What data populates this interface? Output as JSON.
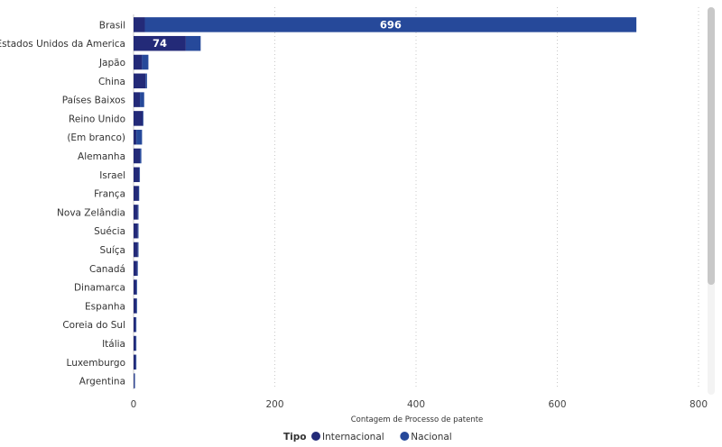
{
  "chart_data": {
    "type": "bar",
    "orientation": "horizontal",
    "stacked": true,
    "categories": [
      "Brasil",
      "Estados Unidos da America",
      "Japão",
      "China",
      "Países Baixos",
      "Reino Unido",
      "(Em branco)",
      "Alemanha",
      "Israel",
      "França",
      "Nova Zelândia",
      "Suécia",
      "Suíça",
      "Canadá",
      "Dinamarca",
      "Espanha",
      "Coreia do Sul",
      "Itália",
      "Luxemburgo",
      "Argentina"
    ],
    "series": [
      {
        "name": "Internacional",
        "color": "#232a78",
        "values": [
          16,
          74,
          12,
          17,
          9,
          13,
          4,
          9,
          8,
          7,
          6,
          6,
          6,
          5,
          4,
          4,
          3,
          3,
          3,
          1
        ]
      },
      {
        "name": "Nacional",
        "color": "#26499a",
        "values": [
          696,
          21,
          9,
          2,
          6,
          1,
          8,
          2,
          1,
          1,
          1,
          1,
          1,
          1,
          1,
          1,
          1,
          1,
          1,
          1
        ]
      }
    ],
    "data_labels": [
      {
        "category": "Brasil",
        "series": "Nacional",
        "text": "696"
      },
      {
        "category": "Estados Unidos da America",
        "series": "Internacional",
        "text": "74"
      }
    ],
    "xlim": [
      0,
      800
    ],
    "xticks": [
      0,
      200,
      400,
      600,
      800
    ],
    "xlabel": "Contagem de Processo de patente",
    "ylabel": "",
    "grid": "vertical-dotted",
    "legend": {
      "title": "Tipo",
      "placement": "bottom-center",
      "items": [
        "Internacional",
        "Nacional"
      ]
    }
  }
}
